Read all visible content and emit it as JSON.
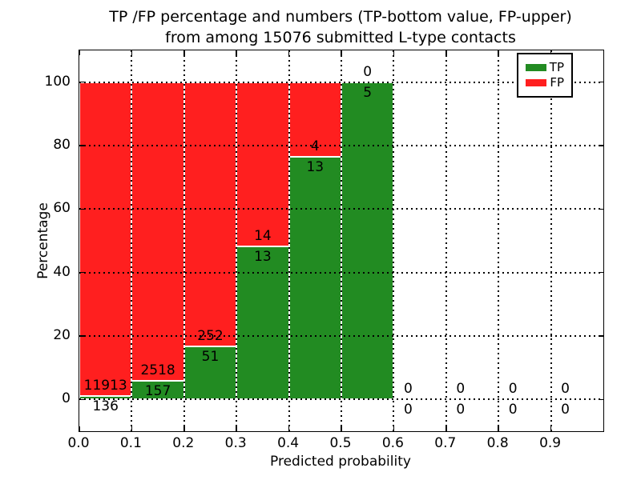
{
  "figure": {
    "title_line1": "TP /FP percentage and numbers (TP-bottom value, FP-upper)",
    "title_line2": "from among 15076 submitted L-type contacts"
  },
  "axes": {
    "xlabel": "Predicted probability",
    "ylabel": "Percentage",
    "xtick_labels": [
      "0.0",
      "0.1",
      "0.2",
      "0.3",
      "0.4",
      "0.5",
      "0.6",
      "0.7",
      "0.8",
      "0.9"
    ],
    "ytick_labels": [
      "0",
      "20",
      "40",
      "60",
      "80",
      "100"
    ]
  },
  "legend": {
    "items": [
      {
        "label": "TP",
        "color": "#228b22"
      },
      {
        "label": "FP",
        "color": "#ff1f1f"
      }
    ]
  },
  "chart_data": {
    "type": "bar",
    "stacked": true,
    "normalized": "each nonempty bin stacks to 100%",
    "title": "TP /FP percentage and numbers (TP-bottom value, FP-upper) from among 15076 submitted L-type contacts",
    "xlabel": "Predicted probability",
    "ylabel": "Percentage",
    "total_contacts": 15076,
    "bin_edges": [
      0.0,
      0.1,
      0.2,
      0.3,
      0.4,
      0.5,
      0.6,
      0.7,
      0.8,
      0.9,
      1.0
    ],
    "series": [
      {
        "name": "TP",
        "color": "#228b22",
        "counts": [
          136,
          157,
          51,
          13,
          13,
          5,
          0,
          0,
          0,
          0
        ]
      },
      {
        "name": "FP",
        "color": "#ff1f1f",
        "counts": [
          11913,
          2518,
          252,
          14,
          4,
          0,
          0,
          0,
          0,
          0
        ]
      }
    ],
    "tp_percent_of_bin": [
      1.13,
      5.87,
      16.83,
      48.15,
      76.47,
      100.0,
      0,
      0,
      0,
      0
    ],
    "xlim": [
      0.0,
      1.0
    ],
    "ylim": [
      -10,
      110
    ],
    "grid": "dotted",
    "legend_position": "upper right"
  }
}
